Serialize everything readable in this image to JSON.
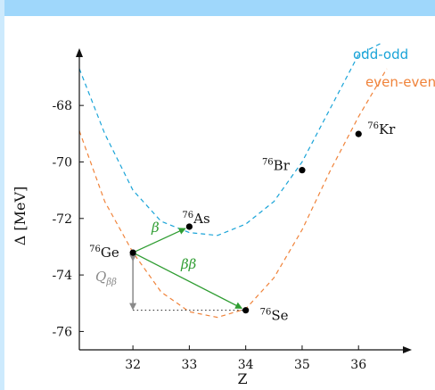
{
  "colors": {
    "odd": "#1aa4d8",
    "even": "#f0833a",
    "decay": "#2f9d32",
    "q": "#8a8a8a",
    "frame_bar": "#9fd7fb"
  },
  "chart_data": {
    "type": "line",
    "title": "",
    "xlabel": "Z",
    "ylabel": "Δ [MeV]",
    "xlim": [
      31.05,
      36.85
    ],
    "ylim": [
      -76.65,
      -66.1
    ],
    "xticks": [
      32,
      33,
      34,
      35,
      36
    ],
    "yticks": [
      -76,
      -74,
      -72,
      -70,
      -68
    ],
    "grid": false,
    "series": [
      {
        "name": "odd-odd",
        "style": "dashed",
        "x": [
          31.05,
          31.5,
          32.0,
          32.5,
          33.0,
          33.5,
          34.0,
          34.5,
          35.0,
          35.5,
          36.0,
          36.4
        ],
        "y": [
          -66.7,
          -69.0,
          -71.0,
          -72.1,
          -72.5,
          -72.6,
          -72.2,
          -71.4,
          -70.0,
          -68.1,
          -66.2,
          -65.8
        ]
      },
      {
        "name": "even-even",
        "style": "dashed",
        "x": [
          31.05,
          31.5,
          32.0,
          32.5,
          33.0,
          33.5,
          34.0,
          34.5,
          35.0,
          35.5,
          36.0,
          36.5
        ],
        "y": [
          -68.9,
          -71.4,
          -73.2,
          -74.6,
          -75.3,
          -75.5,
          -75.2,
          -74.1,
          -72.4,
          -70.3,
          -68.4,
          -66.7
        ]
      }
    ],
    "points": [
      {
        "isotope": "Ge",
        "mass": "76",
        "z": 32,
        "delta": -73.21
      },
      {
        "isotope": "As",
        "mass": "76",
        "z": 33,
        "delta": -72.29
      },
      {
        "isotope": "Se",
        "mass": "76",
        "z": 34,
        "delta": -75.25
      },
      {
        "isotope": "Br",
        "mass": "76",
        "z": 35,
        "delta": -70.29
      },
      {
        "isotope": "Kr",
        "mass": "76",
        "z": 36,
        "delta": -69.01
      }
    ],
    "annotations": {
      "beta": "β",
      "double_beta": "ββ",
      "q_value": "Q",
      "q_subscript": "ββ"
    }
  }
}
